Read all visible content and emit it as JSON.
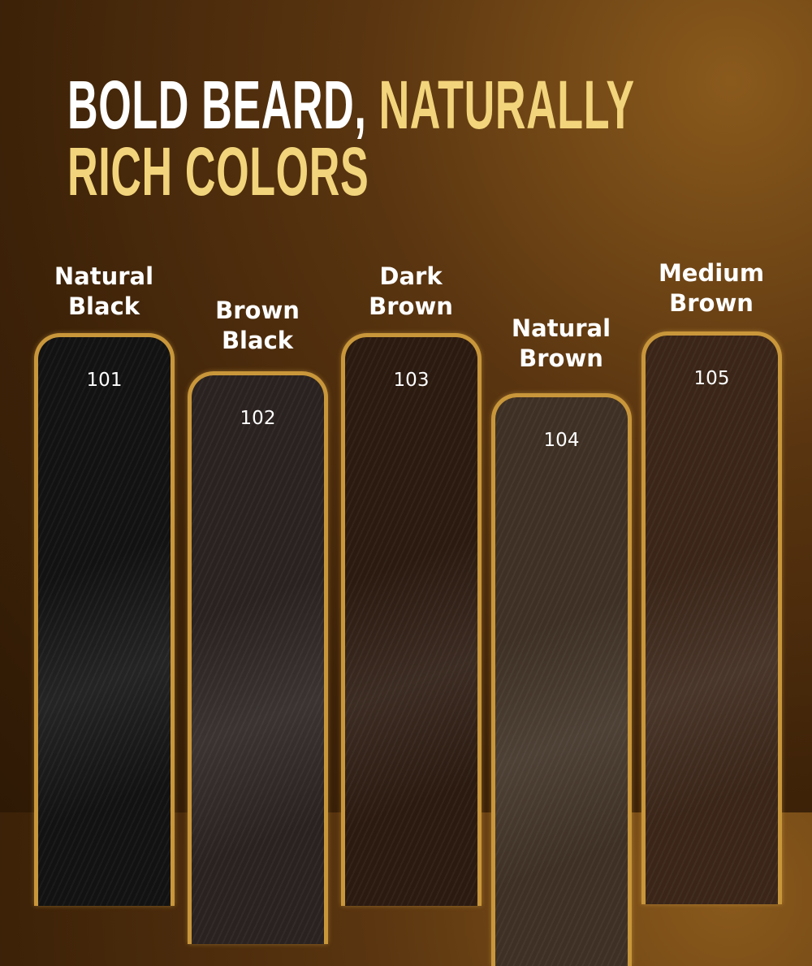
{
  "headline": {
    "line1_white": "BOLD BEARD,",
    "line1_gold": "NATURALLY",
    "line2_gold": "RICH COLORS"
  },
  "accent_color": "#f2d47c",
  "shades": [
    {
      "name": "Natural Black",
      "code": "101",
      "color": "#121212"
    },
    {
      "name": "Brown Black",
      "code": "102",
      "color": "#2a2220"
    },
    {
      "name": "Dark Brown",
      "code": "103",
      "color": "#2b1a10"
    },
    {
      "name": "Natural Brown",
      "code": "104",
      "color": "#3e3024"
    },
    {
      "name": "Medium Brown",
      "code": "105",
      "color": "#3a2518"
    }
  ]
}
